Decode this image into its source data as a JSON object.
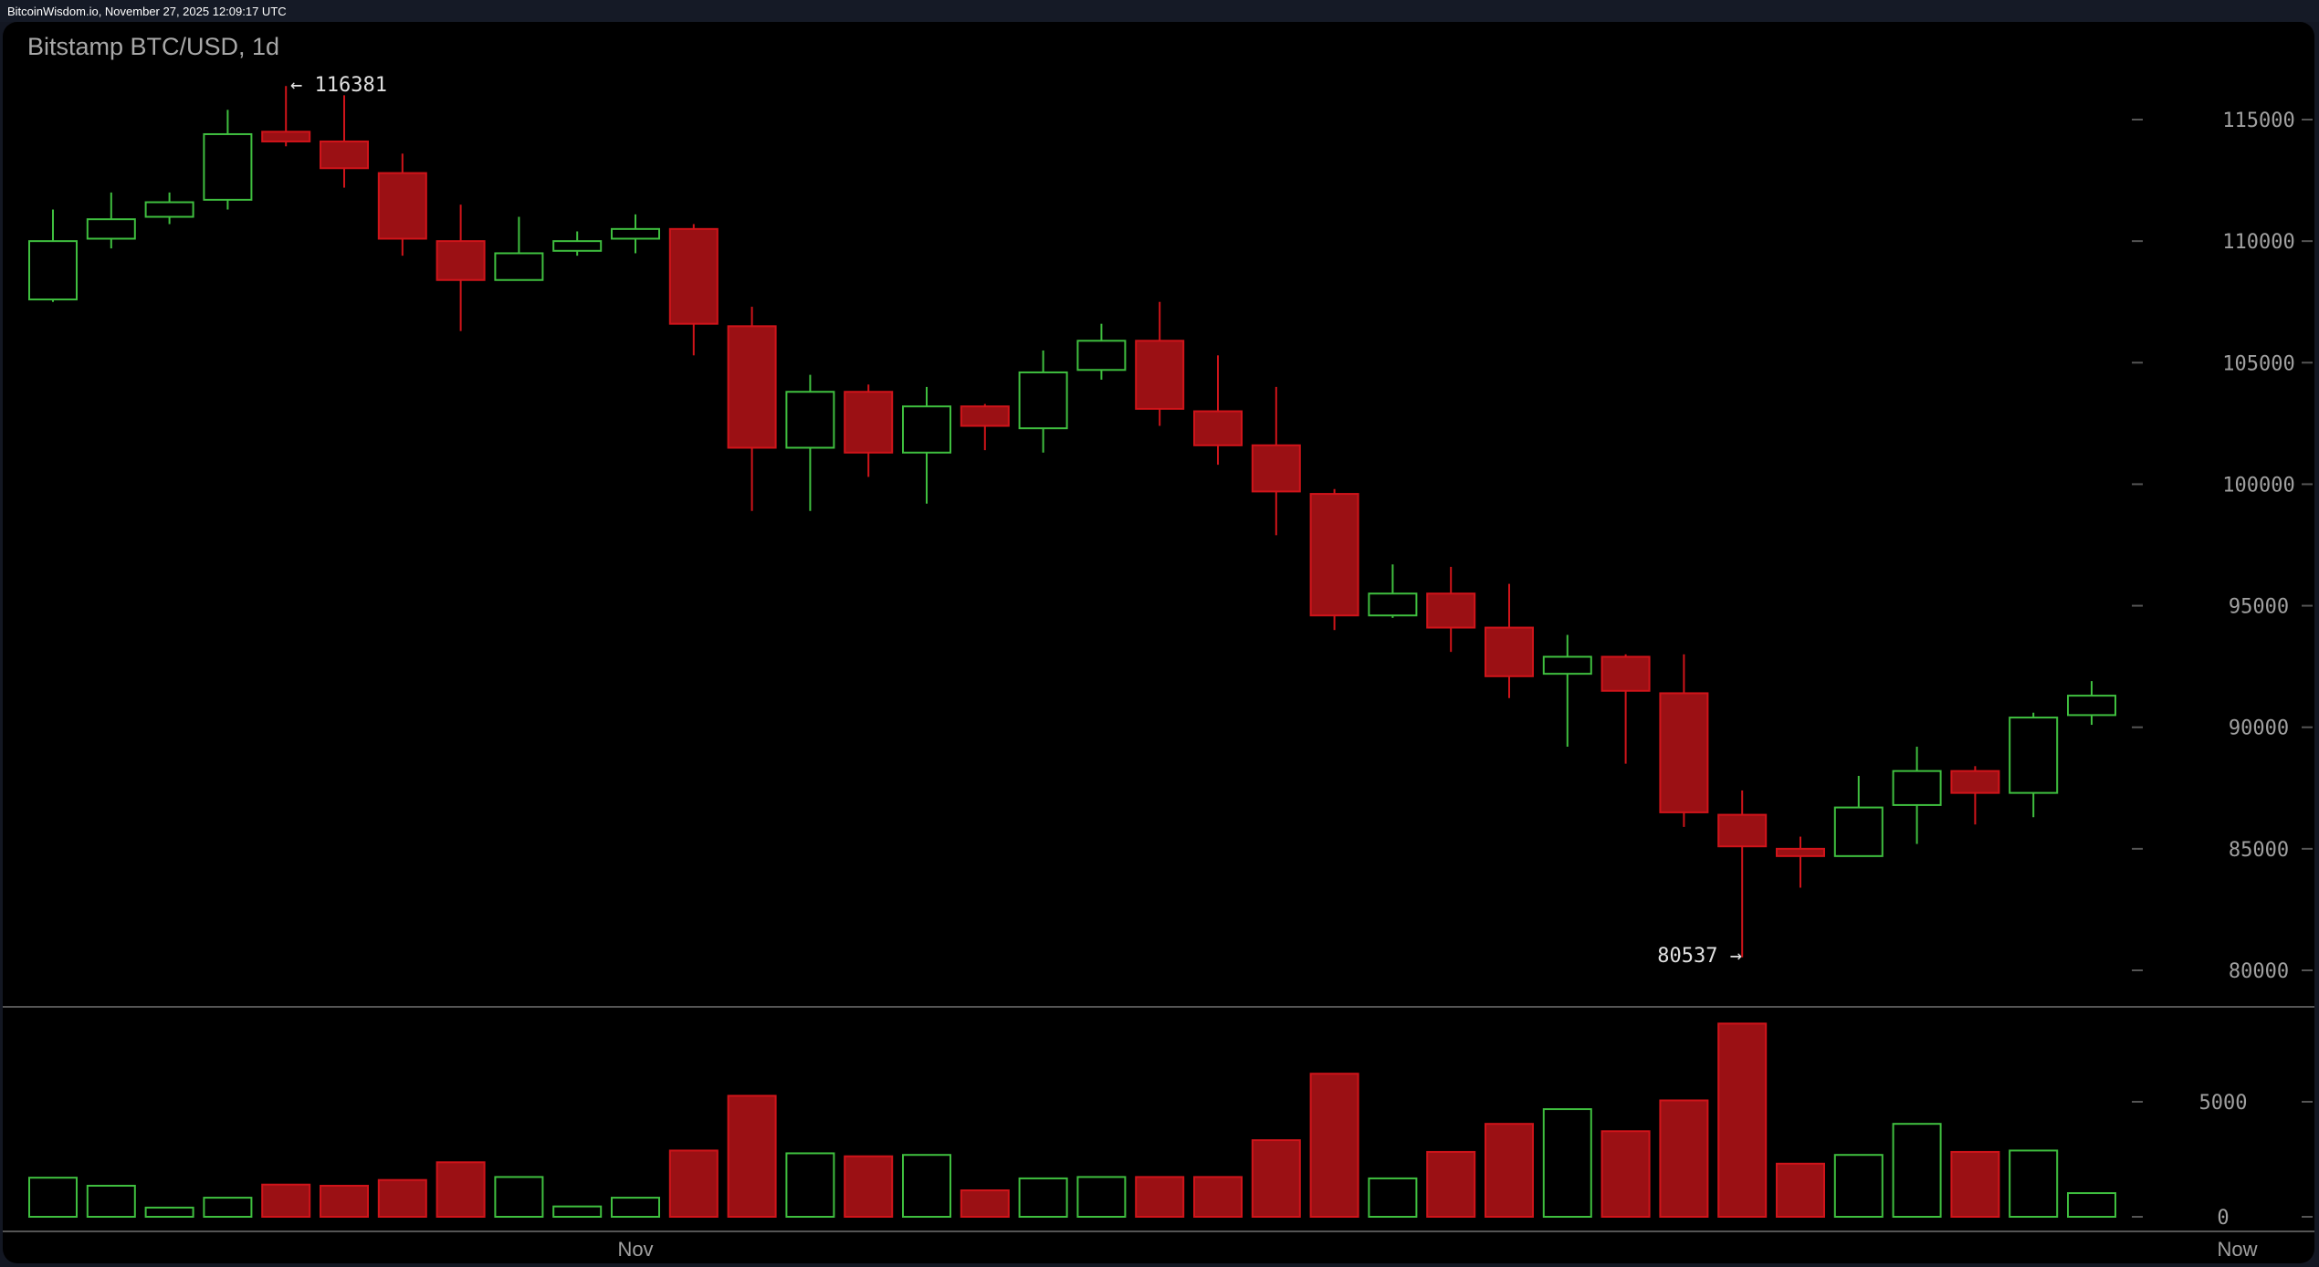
{
  "header": {
    "source_timestamp": "BitcoinWisdom.io, November 27, 2025 12:09:17 UTC"
  },
  "chart_data": {
    "type": "candlestick",
    "title": "Bitstamp BTC/USD, 1d",
    "colors": {
      "up": "#3fbf3f",
      "down_border": "#d0141a",
      "down_fill": "#9b1014",
      "background": "#000000",
      "axis_text": "#a0a0a0"
    },
    "price_axis": {
      "ticks": [
        80000,
        85000,
        90000,
        95000,
        100000,
        105000,
        110000,
        115000
      ],
      "tick_labels": [
        "80000",
        "85000",
        "90000",
        "95000",
        "100000",
        "105000",
        "110000",
        "115000"
      ],
      "range": [
        78500,
        117500
      ]
    },
    "volume_axis": {
      "ticks": [
        0,
        5000
      ],
      "tick_labels": [
        "0",
        "5000"
      ],
      "range": [
        0,
        8700
      ]
    },
    "x_axis": {
      "tick_labels": [
        {
          "label": "Nov",
          "index": 10
        },
        {
          "label": "Now",
          "index": 37.5
        }
      ]
    },
    "annotations": {
      "high": "← 116381",
      "low": "80537 →"
    },
    "candles": [
      {
        "o": 107600,
        "h": 111300,
        "l": 107500,
        "c": 110000,
        "v": 1700
      },
      {
        "o": 110100,
        "h": 112000,
        "l": 109700,
        "c": 110900,
        "v": 1350
      },
      {
        "o": 111000,
        "h": 112000,
        "l": 110700,
        "c": 111600,
        "v": 400
      },
      {
        "o": 111700,
        "h": 115400,
        "l": 111300,
        "c": 114400,
        "v": 830
      },
      {
        "o": 114500,
        "h": 116381,
        "l": 113900,
        "c": 114100,
        "v": 1400
      },
      {
        "o": 114100,
        "h": 116000,
        "l": 112200,
        "c": 113000,
        "v": 1350
      },
      {
        "o": 112800,
        "h": 113600,
        "l": 109400,
        "c": 110100,
        "v": 1600
      },
      {
        "o": 110000,
        "h": 111500,
        "l": 106300,
        "c": 108400,
        "v": 2370
      },
      {
        "o": 108400,
        "h": 111000,
        "l": 108400,
        "c": 109500,
        "v": 1730
      },
      {
        "o": 109600,
        "h": 110400,
        "l": 109400,
        "c": 110000,
        "v": 450
      },
      {
        "o": 110100,
        "h": 111100,
        "l": 109500,
        "c": 110500,
        "v": 830
      },
      {
        "o": 110500,
        "h": 110700,
        "l": 105300,
        "c": 106600,
        "v": 2880
      },
      {
        "o": 106500,
        "h": 107300,
        "l": 98900,
        "c": 101500,
        "v": 5260
      },
      {
        "o": 101500,
        "h": 104500,
        "l": 98900,
        "c": 103800,
        "v": 2760
      },
      {
        "o": 103800,
        "h": 104100,
        "l": 100300,
        "c": 101300,
        "v": 2630
      },
      {
        "o": 101300,
        "h": 104000,
        "l": 99200,
        "c": 103200,
        "v": 2690
      },
      {
        "o": 103200,
        "h": 103300,
        "l": 101400,
        "c": 102400,
        "v": 1150
      },
      {
        "o": 102300,
        "h": 105500,
        "l": 101300,
        "c": 104600,
        "v": 1670
      },
      {
        "o": 104700,
        "h": 106600,
        "l": 104300,
        "c": 105900,
        "v": 1730
      },
      {
        "o": 105900,
        "h": 107500,
        "l": 102400,
        "c": 103100,
        "v": 1730
      },
      {
        "o": 103000,
        "h": 105300,
        "l": 100800,
        "c": 101600,
        "v": 1730
      },
      {
        "o": 101600,
        "h": 104000,
        "l": 97900,
        "c": 99700,
        "v": 3330
      },
      {
        "o": 99600,
        "h": 99800,
        "l": 94000,
        "c": 94600,
        "v": 6220
      },
      {
        "o": 94600,
        "h": 96700,
        "l": 94500,
        "c": 95500,
        "v": 1670
      },
      {
        "o": 95500,
        "h": 96600,
        "l": 93100,
        "c": 94100,
        "v": 2820
      },
      {
        "o": 94100,
        "h": 95900,
        "l": 91200,
        "c": 92100,
        "v": 4040
      },
      {
        "o": 92200,
        "h": 93800,
        "l": 89200,
        "c": 92900,
        "v": 4680
      },
      {
        "o": 92900,
        "h": 93000,
        "l": 88500,
        "c": 91500,
        "v": 3720
      },
      {
        "o": 91400,
        "h": 93000,
        "l": 85900,
        "c": 86500,
        "v": 5060
      },
      {
        "o": 86400,
        "h": 87400,
        "l": 80537,
        "c": 85100,
        "v": 8400
      },
      {
        "o": 85000,
        "h": 85500,
        "l": 83400,
        "c": 84700,
        "v": 2310
      },
      {
        "o": 84700,
        "h": 88000,
        "l": 84700,
        "c": 86700,
        "v": 2690
      },
      {
        "o": 86800,
        "h": 89200,
        "l": 85200,
        "c": 88200,
        "v": 4040
      },
      {
        "o": 88200,
        "h": 88400,
        "l": 86000,
        "c": 87300,
        "v": 2820
      },
      {
        "o": 87300,
        "h": 90600,
        "l": 86300,
        "c": 90400,
        "v": 2880
      },
      {
        "o": 90500,
        "h": 91900,
        "l": 90100,
        "c": 91300,
        "v": 1030
      }
    ]
  }
}
